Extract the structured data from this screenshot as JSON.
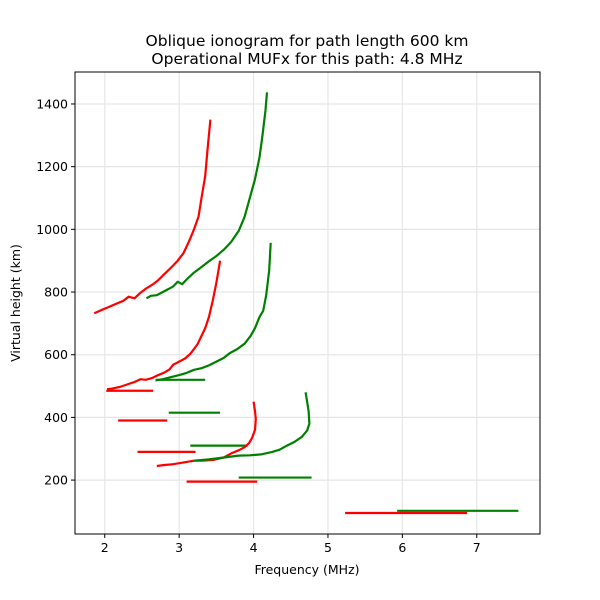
{
  "chart_data": {
    "type": "line",
    "title": "Oblique ionogram for path length 600 km",
    "subtitle": "Operational MUFx for this path: 4.8 MHz",
    "xlabel": "Frequency (MHz)",
    "ylabel": "Virtual height (km)",
    "xlim": [
      1.6,
      7.85
    ],
    "ylim": [
      28,
      1502
    ],
    "xticks": [
      2,
      3,
      4,
      5,
      6,
      7
    ],
    "yticks": [
      200,
      400,
      600,
      800,
      1000,
      1200,
      1400
    ],
    "grid": true,
    "colors": {
      "red": "#ff0000",
      "green": "#008000"
    },
    "curves": [
      {
        "color": "red",
        "points": [
          [
            1.86,
            732
          ],
          [
            1.95,
            742
          ],
          [
            2.05,
            752
          ],
          [
            2.15,
            762
          ],
          [
            2.25,
            772
          ],
          [
            2.32,
            785
          ],
          [
            2.4,
            780
          ],
          [
            2.48,
            798
          ],
          [
            2.56,
            812
          ],
          [
            2.65,
            825
          ],
          [
            2.72,
            838
          ],
          [
            2.8,
            857
          ],
          [
            2.9,
            880
          ],
          [
            2.98,
            900
          ],
          [
            3.06,
            925
          ],
          [
            3.13,
            960
          ],
          [
            3.2,
            1000
          ],
          [
            3.26,
            1040
          ],
          [
            3.3,
            1100
          ],
          [
            3.35,
            1170
          ],
          [
            3.38,
            1250
          ],
          [
            3.42,
            1350
          ]
        ]
      },
      {
        "color": "green",
        "points": [
          [
            2.56,
            780
          ],
          [
            2.62,
            788
          ],
          [
            2.7,
            790
          ],
          [
            2.78,
            800
          ],
          [
            2.86,
            810
          ],
          [
            2.92,
            818
          ],
          [
            2.98,
            833
          ],
          [
            3.04,
            825
          ],
          [
            3.1,
            840
          ],
          [
            3.2,
            862
          ],
          [
            3.3,
            880
          ],
          [
            3.4,
            898
          ],
          [
            3.5,
            915
          ],
          [
            3.6,
            935
          ],
          [
            3.7,
            960
          ],
          [
            3.8,
            995
          ],
          [
            3.88,
            1040
          ],
          [
            3.95,
            1100
          ],
          [
            4.02,
            1160
          ],
          [
            4.08,
            1230
          ],
          [
            4.12,
            1300
          ],
          [
            4.16,
            1380
          ],
          [
            4.18,
            1437
          ]
        ]
      },
      {
        "color": "red",
        "points": [
          [
            2.03,
            490
          ],
          [
            2.1,
            492
          ],
          [
            2.2,
            497
          ],
          [
            2.3,
            505
          ],
          [
            2.4,
            513
          ],
          [
            2.48,
            522
          ],
          [
            2.55,
            520
          ],
          [
            2.63,
            525
          ],
          [
            2.7,
            533
          ],
          [
            2.8,
            543
          ],
          [
            2.87,
            553
          ],
          [
            2.92,
            568
          ],
          [
            3.0,
            578
          ],
          [
            3.08,
            588
          ],
          [
            3.15,
            603
          ],
          [
            3.2,
            618
          ],
          [
            3.25,
            635
          ],
          [
            3.3,
            660
          ],
          [
            3.35,
            685
          ],
          [
            3.4,
            720
          ],
          [
            3.45,
            770
          ],
          [
            3.5,
            830
          ],
          [
            3.55,
            900
          ]
        ]
      },
      {
        "color": "green",
        "points": [
          [
            2.68,
            518
          ],
          [
            2.78,
            522
          ],
          [
            2.88,
            528
          ],
          [
            3.0,
            535
          ],
          [
            3.1,
            542
          ],
          [
            3.2,
            552
          ],
          [
            3.3,
            557
          ],
          [
            3.4,
            566
          ],
          [
            3.5,
            578
          ],
          [
            3.6,
            590
          ],
          [
            3.68,
            605
          ],
          [
            3.78,
            618
          ],
          [
            3.88,
            635
          ],
          [
            3.96,
            660
          ],
          [
            4.02,
            685
          ],
          [
            4.08,
            720
          ],
          [
            4.13,
            740
          ],
          [
            4.17,
            790
          ],
          [
            4.21,
            870
          ],
          [
            4.23,
            957
          ]
        ]
      },
      {
        "color": "red",
        "points": [
          [
            2.7,
            245
          ],
          [
            2.8,
            248
          ],
          [
            2.9,
            250
          ],
          [
            3.0,
            254
          ],
          [
            3.1,
            258
          ],
          [
            3.2,
            262
          ],
          [
            3.3,
            262
          ],
          [
            3.45,
            264
          ],
          [
            3.6,
            272
          ],
          [
            3.7,
            285
          ],
          [
            3.8,
            295
          ],
          [
            3.88,
            305
          ],
          [
            3.94,
            318
          ],
          [
            3.98,
            335
          ],
          [
            4.02,
            360
          ],
          [
            4.03,
            395
          ],
          [
            4.02,
            420
          ],
          [
            4.0,
            450
          ]
        ]
      },
      {
        "color": "green",
        "points": [
          [
            3.2,
            262
          ],
          [
            3.4,
            266
          ],
          [
            3.6,
            272
          ],
          [
            3.8,
            278
          ],
          [
            3.95,
            279
          ],
          [
            4.1,
            282
          ],
          [
            4.25,
            290
          ],
          [
            4.35,
            297
          ],
          [
            4.45,
            310
          ],
          [
            4.55,
            322
          ],
          [
            4.65,
            338
          ],
          [
            4.72,
            358
          ],
          [
            4.75,
            380
          ],
          [
            4.74,
            420
          ],
          [
            4.72,
            450
          ],
          [
            4.7,
            480
          ]
        ]
      }
    ],
    "horizontal_segments": [
      {
        "color": "red",
        "x": [
          2.02,
          2.65
        ],
        "y": 485
      },
      {
        "color": "green",
        "x": [
          2.69,
          3.35
        ],
        "y": 520
      },
      {
        "color": "red",
        "x": [
          2.18,
          2.84
        ],
        "y": 390
      },
      {
        "color": "green",
        "x": [
          2.86,
          3.55
        ],
        "y": 415
      },
      {
        "color": "red",
        "x": [
          2.44,
          3.22
        ],
        "y": 290
      },
      {
        "color": "green",
        "x": [
          3.15,
          3.92
        ],
        "y": 310
      },
      {
        "color": "red",
        "x": [
          3.1,
          4.05
        ],
        "y": 195
      },
      {
        "color": "green",
        "x": [
          3.8,
          4.78
        ],
        "y": 208
      },
      {
        "color": "red",
        "x": [
          5.23,
          6.87
        ],
        "y": 95
      },
      {
        "color": "green",
        "x": [
          5.93,
          7.56
        ],
        "y": 102
      }
    ]
  }
}
